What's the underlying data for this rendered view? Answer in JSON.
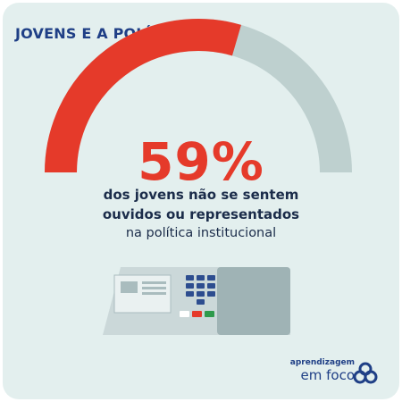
{
  "header": {
    "title": "JOVENS E A POLÍTICA"
  },
  "stat": {
    "value": 59,
    "display": "59%",
    "line1": "dos jovens não se sentem",
    "line2": "ouvidos ou representados",
    "line3": "na política institucional"
  },
  "colors": {
    "background": "#e3efee",
    "accent": "#e53a2a",
    "gauge_track": "#bed0cf",
    "title": "#1f3f86",
    "text": "#1b2c4a"
  },
  "brand": {
    "line1": "aprendizagem",
    "line2": "em foco"
  },
  "icons": {
    "logo": "aprendizagem-em-foco-logo-icon",
    "illustration": "voting-machine-icon"
  }
}
